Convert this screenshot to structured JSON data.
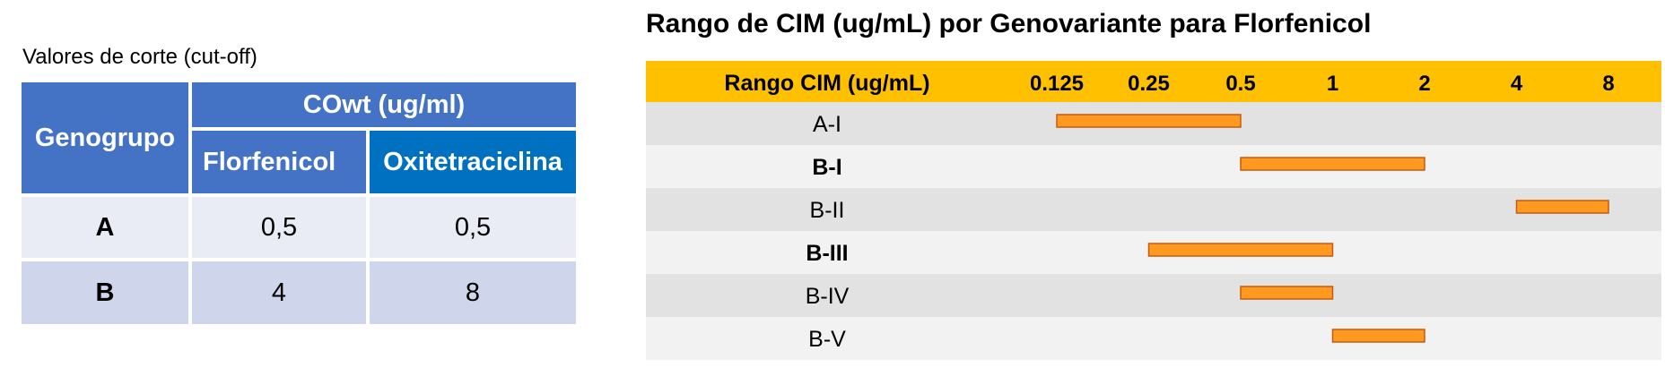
{
  "cutoff": {
    "title": "Valores de corte (cut-off)",
    "header_group": "Genogrupo",
    "header_cowt": "COwt (ug/ml)",
    "header_florfenicol": "Florfenicol",
    "header_oxitetraciclina": "Oxitetraciclina",
    "rows": [
      {
        "group": "A",
        "florfenicol": "0,5",
        "oxitetraciclina": "0,5"
      },
      {
        "group": "B",
        "florfenicol": "4",
        "oxitetraciclina": "8"
      }
    ],
    "colors": {
      "header": "#4472c4",
      "header_dark": "#0070c0",
      "row_a": "#e9ebf5",
      "row_b": "#cfd5ea"
    }
  },
  "chart_data": {
    "type": "bar",
    "title": "Rango de CIM (ug/mL) por Genovariante para Florfenicol",
    "header_label": "Rango CIM (ug/mL)",
    "ticks": [
      "0.125",
      "0.25",
      "0.5",
      "1",
      "2",
      "4",
      "8"
    ],
    "scale": "log2",
    "categories": [
      "A-I",
      "B-I",
      "B-II",
      "B-III",
      "B-IV",
      "B-V"
    ],
    "bold_categories": [
      "B-I",
      "B-III"
    ],
    "ranges": [
      {
        "category": "A-I",
        "min": 0.125,
        "max": 0.5
      },
      {
        "category": "B-I",
        "min": 0.5,
        "max": 2
      },
      {
        "category": "B-II",
        "min": 4,
        "max": 8
      },
      {
        "category": "B-III",
        "min": 0.25,
        "max": 1
      },
      {
        "category": "B-IV",
        "min": 0.5,
        "max": 1
      },
      {
        "category": "B-V",
        "min": 1,
        "max": 2
      }
    ],
    "colors": {
      "header": "#ffc000",
      "bar": "#ff9a1f",
      "bar_border": "#c55a11",
      "row_dark": "#e2e2e2",
      "row_light": "#f2f2f2"
    }
  }
}
